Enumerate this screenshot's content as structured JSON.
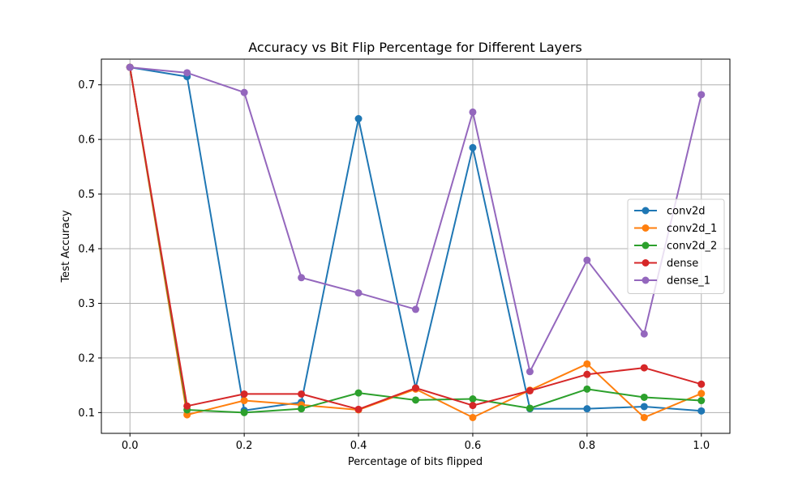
{
  "chart_data": {
    "type": "line",
    "title": "Accuracy vs Bit Flip Percentage for Different Layers",
    "xlabel": "Percentage of bits flipped",
    "ylabel": "Test Accuracy",
    "x": [
      0.0,
      0.1,
      0.2,
      0.3,
      0.4,
      0.5,
      0.6,
      0.7,
      0.8,
      0.9,
      1.0
    ],
    "xlim": [
      -0.05,
      1.05
    ],
    "ylim": [
      0.062,
      0.747
    ],
    "xticks": [
      "0.0",
      "0.2",
      "0.4",
      "0.6",
      "0.8",
      "1.0"
    ],
    "yticks": [
      "0.1",
      "0.2",
      "0.3",
      "0.4",
      "0.5",
      "0.6",
      "0.7"
    ],
    "grid": true,
    "legend_position": "center-right",
    "series": [
      {
        "name": "conv2d",
        "color": "#1f77b4",
        "values": [
          0.732,
          0.715,
          0.104,
          0.119,
          0.638,
          0.145,
          0.585,
          0.107,
          0.107,
          0.111,
          0.103
        ]
      },
      {
        "name": "conv2d_1",
        "color": "#ff7f0e",
        "values": [
          0.732,
          0.096,
          0.122,
          0.114,
          0.105,
          0.143,
          0.091,
          0.141,
          0.189,
          0.091,
          0.135
        ]
      },
      {
        "name": "conv2d_2",
        "color": "#2ca02c",
        "values": [
          0.732,
          0.105,
          0.1,
          0.107,
          0.136,
          0.123,
          0.125,
          0.108,
          0.143,
          0.128,
          0.122
        ]
      },
      {
        "name": "dense",
        "color": "#d62728",
        "values": [
          0.732,
          0.112,
          0.134,
          0.134,
          0.106,
          0.145,
          0.113,
          0.14,
          0.17,
          0.182,
          0.152
        ]
      },
      {
        "name": "dense_1",
        "color": "#9467bd",
        "values": [
          0.732,
          0.722,
          0.686,
          0.347,
          0.319,
          0.289,
          0.65,
          0.175,
          0.379,
          0.244,
          0.682
        ]
      }
    ]
  }
}
